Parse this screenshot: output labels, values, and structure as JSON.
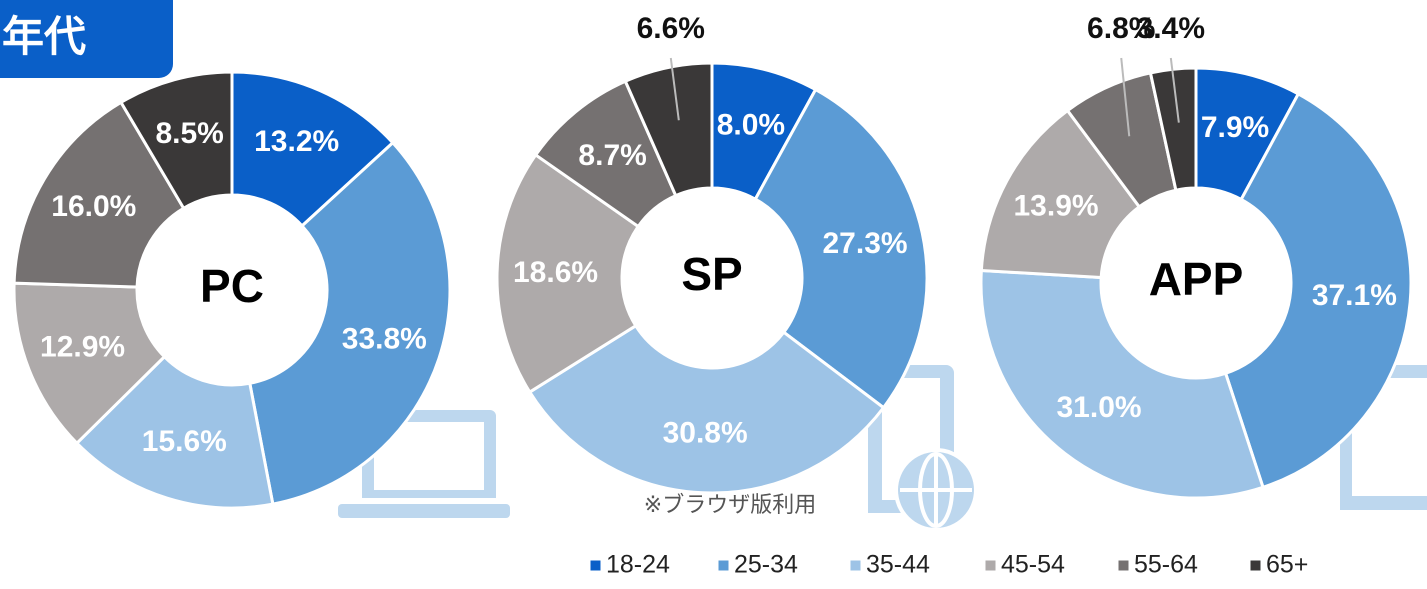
{
  "header": "年代",
  "note": "※ブラウザ版利用",
  "chart_data": [
    {
      "type": "pie",
      "title": "PC",
      "categories": [
        "18-24",
        "25-34",
        "35-44",
        "45-54",
        "55-64",
        "65+"
      ],
      "values": [
        13.2,
        33.8,
        15.6,
        12.9,
        16.0,
        8.5
      ],
      "value_labels": [
        "13.2%",
        "33.8%",
        "15.6%",
        "12.9%",
        "16.0%",
        "8.5%"
      ],
      "colors": [
        "#0a5fc8",
        "#5b9bd5",
        "#9dc3e6",
        "#aeaaaa",
        "#757171",
        "#3a3838"
      ]
    },
    {
      "type": "pie",
      "title": "SP",
      "categories": [
        "18-24",
        "25-34",
        "35-44",
        "45-54",
        "55-64",
        "65+"
      ],
      "values": [
        8.0,
        27.3,
        30.8,
        18.6,
        8.7,
        6.6
      ],
      "value_labels": [
        "8.0%",
        "27.3%",
        "30.8%",
        "18.6%",
        "8.7%",
        "6.6%"
      ],
      "colors": [
        "#0a5fc8",
        "#5b9bd5",
        "#9dc3e6",
        "#aeaaaa",
        "#757171",
        "#3a3838"
      ]
    },
    {
      "type": "pie",
      "title": "APP",
      "categories": [
        "18-24",
        "25-34",
        "35-44",
        "45-54",
        "55-64",
        "65+"
      ],
      "values": [
        7.9,
        37.1,
        31.0,
        13.9,
        6.8,
        3.4
      ],
      "value_labels": [
        "7.9%",
        "37.1%",
        "31.0%",
        "13.9%",
        "6.8%",
        "3.4%"
      ],
      "colors": [
        "#0a5fc8",
        "#5b9bd5",
        "#9dc3e6",
        "#aeaaaa",
        "#757171",
        "#3a3838"
      ]
    }
  ]
}
